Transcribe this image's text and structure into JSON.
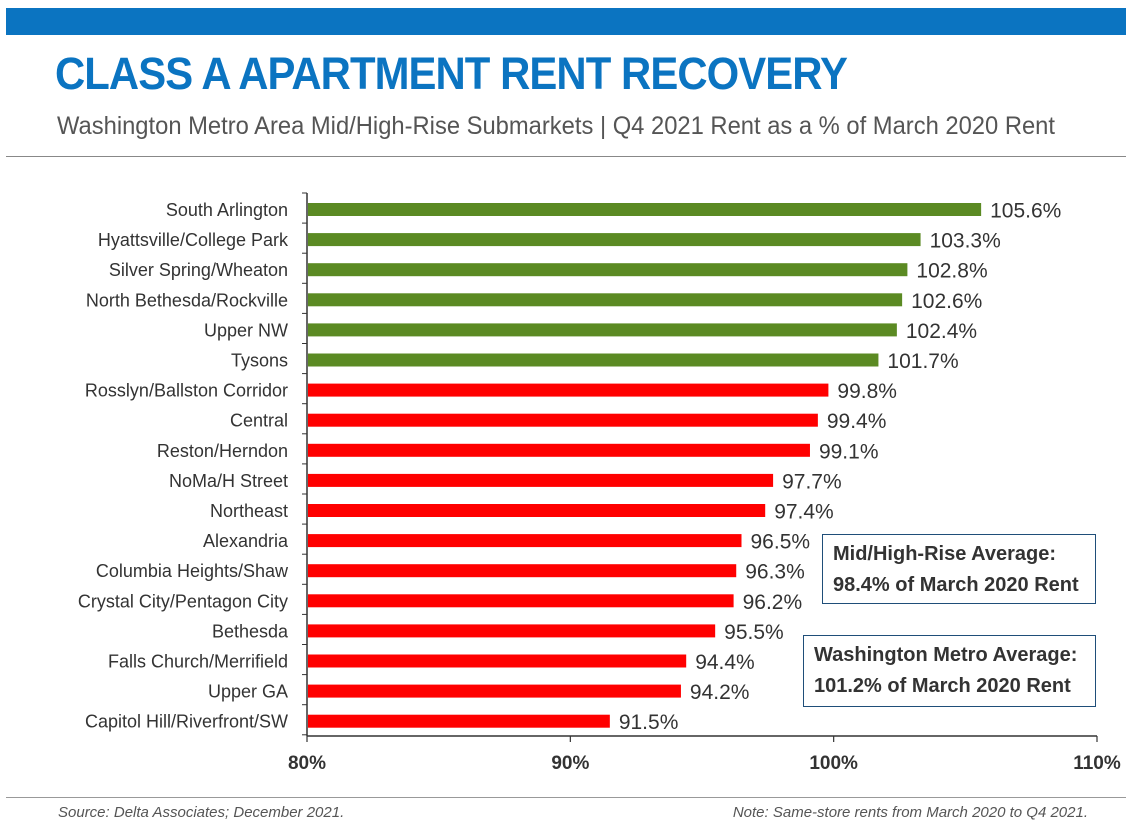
{
  "header": {
    "title": "CLASS A APARTMENT RENT RECOVERY",
    "subtitle": "Washington Metro Area Mid/High-Rise Submarkets | Q4 2021 Rent as a % of March 2020 Rent"
  },
  "colors": {
    "brand_blue": "#0B74C1",
    "above_100": "#5B8A23",
    "below_100": "#FF0000",
    "callout_border": "#1F4E79"
  },
  "callouts": [
    {
      "line1": "Mid/High-Rise Average:",
      "line2": "98.4% of March 2020 Rent"
    },
    {
      "line1": "Washington Metro Average:",
      "line2": "101.2% of March 2020 Rent"
    }
  ],
  "footer": {
    "source": "Source: Delta Associates; December 2021.",
    "note": "Note: Same-store rents from March 2020 to Q4 2021."
  },
  "chart_data": {
    "type": "bar",
    "orientation": "horizontal",
    "categories": [
      "South Arlington",
      "Hyattsville/College Park",
      "Silver Spring/Wheaton",
      "North Bethesda/Rockville",
      "Upper NW",
      "Tysons",
      "Rosslyn/Ballston Corridor",
      "Central",
      "Reston/Herndon",
      "NoMa/H Street",
      "Northeast",
      "Alexandria",
      "Columbia Heights/Shaw",
      "Crystal City/Pentagon City",
      "Bethesda",
      "Falls Church/Merrifield",
      "Upper GA",
      "Capitol Hill/Riverfront/SW"
    ],
    "values": [
      105.6,
      103.3,
      102.8,
      102.6,
      102.4,
      101.7,
      99.8,
      99.4,
      99.1,
      97.7,
      97.4,
      96.5,
      96.3,
      96.2,
      95.5,
      94.4,
      94.2,
      91.5
    ],
    "value_labels": [
      "105.6%",
      "103.3%",
      "102.8%",
      "102.6%",
      "102.4%",
      "101.7%",
      "99.8%",
      "99.4%",
      "99.1%",
      "97.7%",
      "97.4%",
      "96.5%",
      "96.3%",
      "96.2%",
      "95.5%",
      "94.4%",
      "94.2%",
      "91.5%"
    ],
    "xlim": [
      80,
      110
    ],
    "xticks": [
      80,
      90,
      100,
      110
    ],
    "xtick_labels": [
      "80%",
      "90%",
      "100%",
      "110%"
    ],
    "xlabel": "",
    "ylabel": "",
    "grid": false,
    "legend": "none",
    "bar_color_rule": "green when value > 100, red otherwise"
  }
}
